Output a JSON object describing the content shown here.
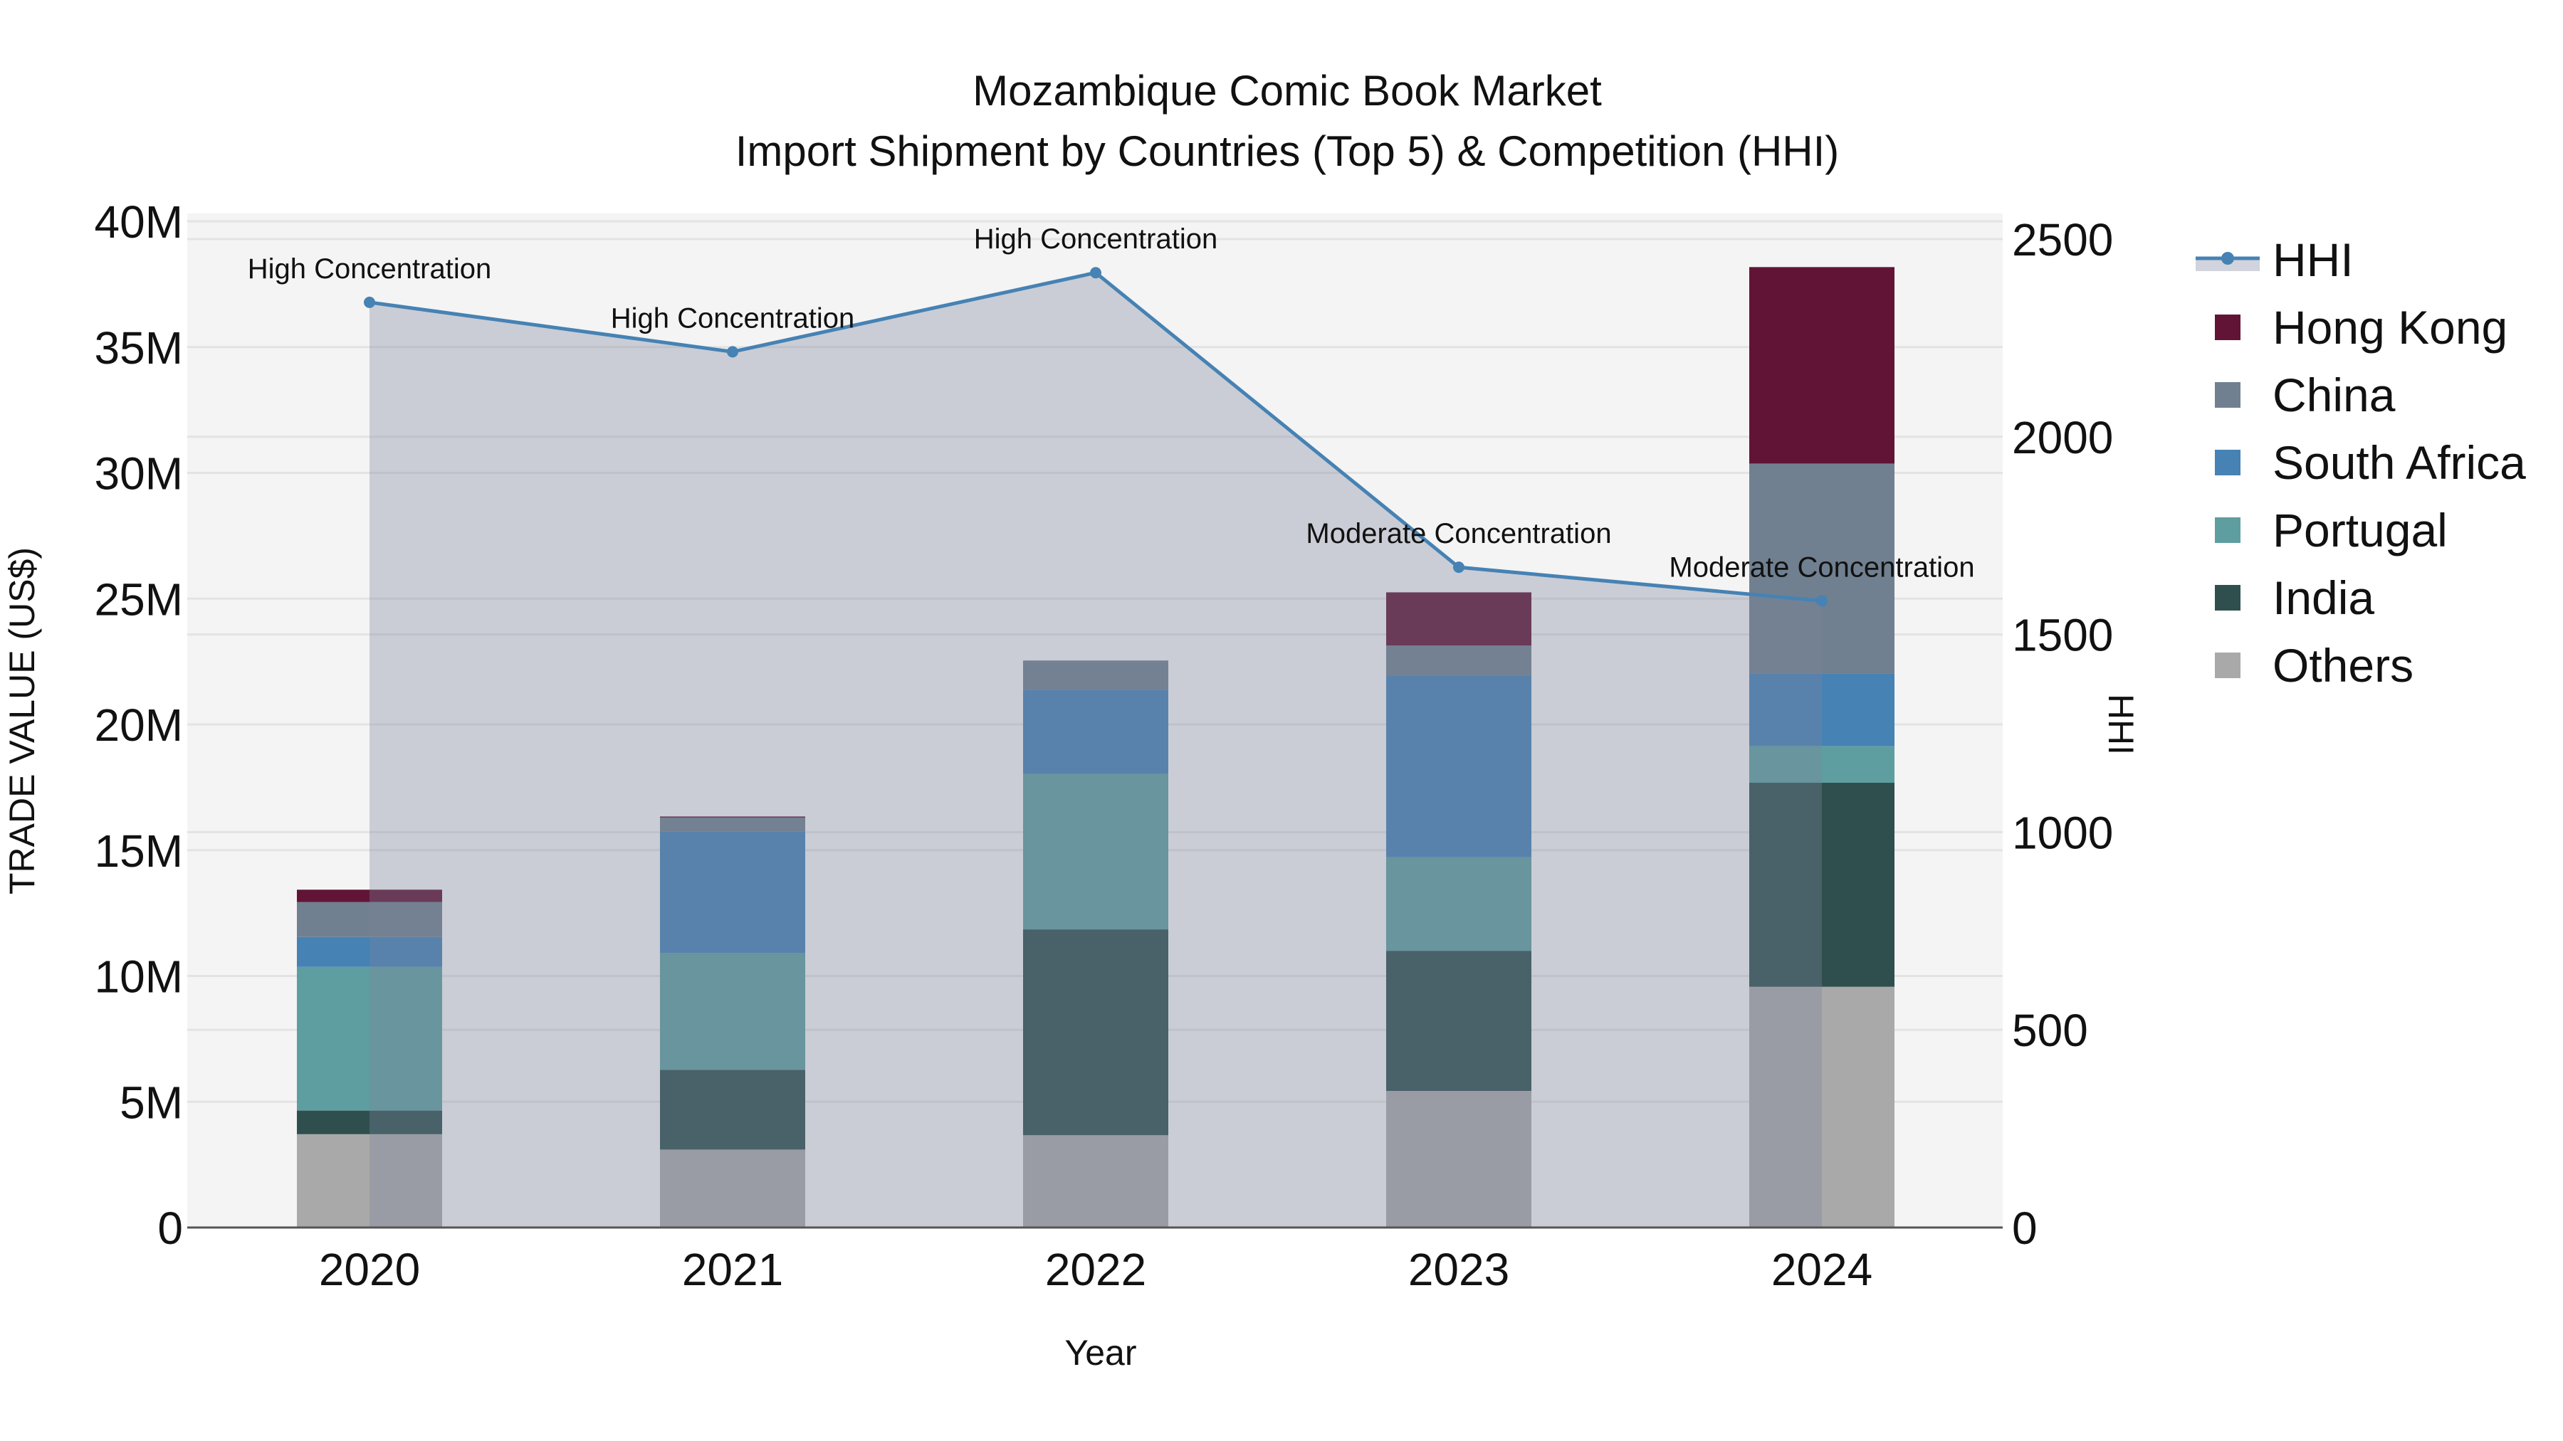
{
  "chart_data": {
    "type": "bar",
    "subtype": "stacked bar + line (secondary axis) with area fill",
    "title": "Mozambique Comic Book Market",
    "subtitle": "Import Shipment by Countries (Top 5) & Competition (HHI)",
    "xlabel": "Year",
    "ylabel": "TRADE VALUE (US$)",
    "y2label": "HHI",
    "categories": [
      "2020",
      "2021",
      "2022",
      "2023",
      "2024"
    ],
    "ylim": [
      0,
      40000000
    ],
    "y_ticks": [
      {
        "value": 0,
        "label": "0"
      },
      {
        "value": 5000000,
        "label": "5M"
      },
      {
        "value": 10000000,
        "label": "10M"
      },
      {
        "value": 15000000,
        "label": "15M"
      },
      {
        "value": 20000000,
        "label": "20M"
      },
      {
        "value": 25000000,
        "label": "25M"
      },
      {
        "value": 30000000,
        "label": "30M"
      },
      {
        "value": 35000000,
        "label": "35M"
      },
      {
        "value": 40000000,
        "label": "40M"
      }
    ],
    "y2lim": [
      0,
      2550
    ],
    "y2_ticks": [
      {
        "value": 0,
        "label": "0"
      },
      {
        "value": 500,
        "label": "500"
      },
      {
        "value": 1000,
        "label": "1000"
      },
      {
        "value": 1500,
        "label": "1500"
      },
      {
        "value": 2000,
        "label": "2000"
      },
      {
        "value": 2500,
        "label": "2500"
      }
    ],
    "grid": true,
    "legend_position": "right",
    "series": [
      {
        "name": "Others",
        "color": "#A9A9A9",
        "values": [
          3710000,
          3100000,
          3670000,
          5430000,
          9570000
        ]
      },
      {
        "name": "India",
        "color": "#2F4F4F",
        "values": [
          940000,
          3170000,
          8180000,
          5570000,
          8110000
        ]
      },
      {
        "name": "Portugal",
        "color": "#5F9EA0",
        "values": [
          5710000,
          4640000,
          6180000,
          3720000,
          1460000
        ]
      },
      {
        "name": "South Africa",
        "color": "#4682B4",
        "values": [
          1190000,
          4840000,
          3350000,
          7230000,
          2870000
        ]
      },
      {
        "name": "China",
        "color": "#708090",
        "values": [
          1390000,
          560000,
          1160000,
          1190000,
          8360000
        ]
      },
      {
        "name": "Hong Kong",
        "color": "#621437",
        "values": [
          490000,
          30000,
          0,
          2110000,
          7810000
        ]
      }
    ],
    "line_series": {
      "name": "HHI",
      "color": "#4682B4",
      "fill_color": "rgba(122,133,155,0.35)",
      "axis": "y2",
      "values": [
        2340,
        2215,
        2415,
        1670,
        1585
      ],
      "annotations": [
        "High Concentration",
        "High Concentration",
        "High Concentration",
        "Moderate Concentration",
        "Moderate Concentration"
      ]
    },
    "legend": [
      {
        "name": "HHI",
        "symbol": "line-marker-fill",
        "color": "#4682B4"
      },
      {
        "name": "Hong Kong",
        "symbol": "square",
        "color": "#621437"
      },
      {
        "name": "China",
        "symbol": "square",
        "color": "#708090"
      },
      {
        "name": "South Africa",
        "symbol": "square",
        "color": "#4682B4"
      },
      {
        "name": "Portugal",
        "symbol": "square",
        "color": "#5F9EA0"
      },
      {
        "name": "India",
        "symbol": "square",
        "color": "#2F4F4F"
      },
      {
        "name": "Others",
        "symbol": "square",
        "color": "#A9A9A9"
      }
    ]
  },
  "colors": {
    "plot_background": "#F4F4F4",
    "grid": "#E3E3E3",
    "axis_line": "#555555",
    "text": "#111111"
  }
}
